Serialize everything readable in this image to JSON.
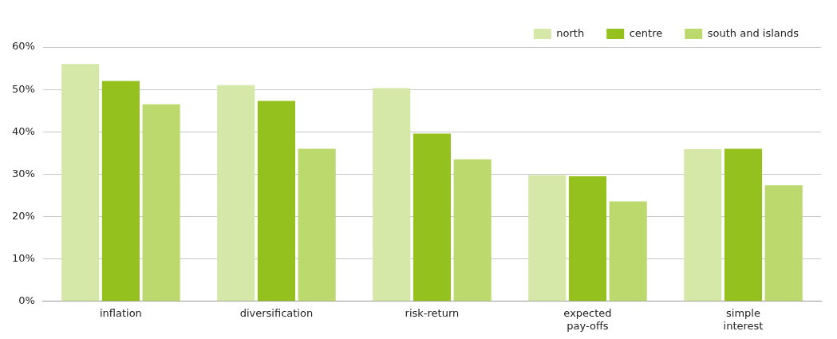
{
  "chart_data": {
    "type": "bar",
    "categories": [
      "inflation",
      "diversification",
      "risk-return",
      "expected pay-offs",
      "simple interest"
    ],
    "series": [
      {
        "name": "north",
        "color": "#d6e8a8",
        "values": [
          56,
          51,
          50.3,
          29.8,
          35.9
        ]
      },
      {
        "name": "centre",
        "color": "#95c11f",
        "values": [
          52,
          47.3,
          39.6,
          29.5,
          36
        ]
      },
      {
        "name": "south and islands",
        "color": "#bcd96e",
        "values": [
          46.5,
          36,
          33.5,
          23.6,
          27.4
        ]
      }
    ],
    "ylim": [
      0,
      60
    ],
    "yticks": [
      {
        "value": 0,
        "label": "0%"
      },
      {
        "value": 10,
        "label": "10%"
      },
      {
        "value": 20,
        "label": "20%"
      },
      {
        "value": 30,
        "label": "30%"
      },
      {
        "value": 40,
        "label": "40%"
      },
      {
        "value": 50,
        "label": "50%"
      },
      {
        "value": 60,
        "label": "60%"
      }
    ],
    "grid": "y",
    "legend": "top right"
  }
}
